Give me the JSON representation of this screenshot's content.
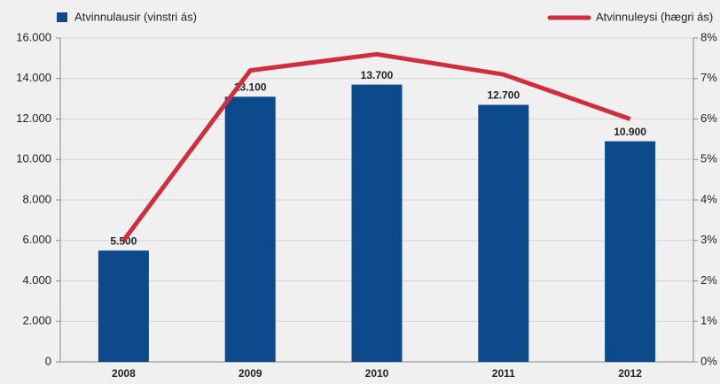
{
  "chart_data": {
    "type": "bar",
    "categories": [
      "2008",
      "2009",
      "2010",
      "2011",
      "2012"
    ],
    "series": [
      {
        "name": "Atvinnulausir (vinstri ás)",
        "color": "#0c4a8c",
        "type": "bar",
        "values": [
          5500,
          13100,
          13700,
          12700,
          10900
        ],
        "value_labels": [
          "5.500",
          "13.100",
          "13.700",
          "12.700",
          "10.900"
        ]
      },
      {
        "name": "Atvinnuleysi (hægri ás)",
        "color": "#d02e3e",
        "type": "line",
        "axis": "y2",
        "values": [
          3.0,
          7.2,
          7.6,
          7.1,
          6.0
        ]
      }
    ],
    "ylim": [
      0,
      16000
    ],
    "yticks": [
      0,
      {
        "value": 2000,
        "label": "2.000"
      },
      {
        "value": 4000,
        "label": "4.000"
      },
      {
        "value": 6000,
        "label": "6.000"
      },
      {
        "value": 8000,
        "label": "8.000"
      },
      {
        "value": 10000,
        "label": "10.000"
      },
      {
        "value": 12000,
        "label": "12.000"
      },
      {
        "value": 14000,
        "label": "14.000"
      },
      {
        "value": 16000,
        "label": "16.000"
      }
    ],
    "y2lim": [
      0,
      8
    ],
    "y2ticks": [
      {
        "value": 0,
        "label": "0%"
      },
      {
        "value": 1,
        "label": "1%"
      },
      {
        "value": 2,
        "label": "2%"
      },
      {
        "value": 3,
        "label": "3%"
      },
      {
        "value": 4,
        "label": "4%"
      },
      {
        "value": 5,
        "label": "5%"
      },
      {
        "value": 6,
        "label": "6%"
      },
      {
        "value": 7,
        "label": "7%"
      },
      {
        "value": 8,
        "label": "8%"
      }
    ],
    "grid": true
  }
}
